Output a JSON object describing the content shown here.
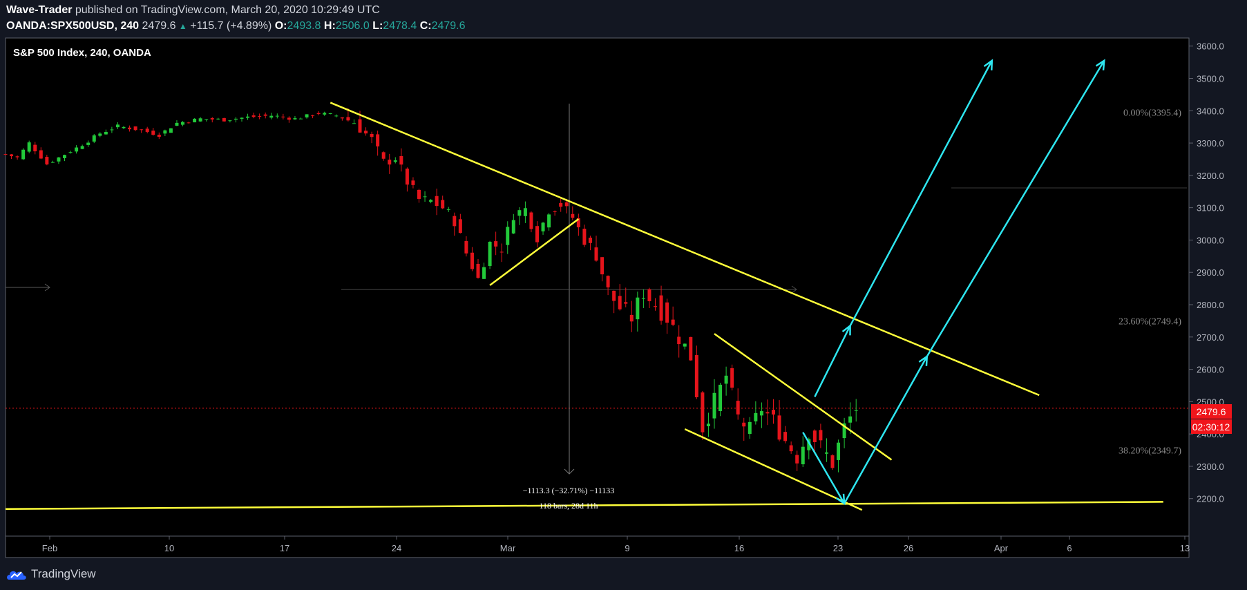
{
  "header": {
    "author": "Wave-Trader",
    "published_text": "published on TradingView.com, March 20, 2020 10:29:49 UTC",
    "symbol": "OANDA:SPX500USD, 240",
    "last": "2479.6",
    "change": "+115.7 (+4.89%)",
    "o_label": "O:",
    "o_value": "2493.8",
    "h_label": "H:",
    "h_value": "2506.0",
    "l_label": "L:",
    "l_value": "2478.4",
    "c_label": "C:",
    "c_value": "2479.6"
  },
  "footer": {
    "brand": "TradingView"
  },
  "colors": {
    "background": "#000000",
    "page_background": "#131722",
    "up_candle": "#22c93a",
    "down_candle": "#e5141b",
    "trendline": "#ffff3a",
    "projection": "#2ee6f0",
    "price_tag": "#f0151b",
    "fib_text": "#8a8a8a"
  },
  "chart_data": {
    "type": "candlestick",
    "title": "S&P 500 Index, 240, OANDA",
    "x_ticks": [
      "Feb",
      "10",
      "17",
      "24",
      "Mar",
      "9",
      "16",
      "23",
      "26",
      "Apr",
      "6",
      "13"
    ],
    "y_ticks": [
      "3600.0",
      "3500.0",
      "3400.0",
      "3300.0",
      "3200.0",
      "3100.0",
      "3000.0",
      "2900.0",
      "2800.0",
      "2700.0",
      "2600.0",
      "2500.0",
      "2400.0",
      "2300.0",
      "2200.0"
    ],
    "ylim": [
      2084,
      3625
    ],
    "last_price_label": "2479.6",
    "last_price": 2479.6,
    "countdown": "02:30:12",
    "fib_levels": [
      {
        "label": "0.00%(3395.4)",
        "price": 3395.4
      },
      {
        "label": "23.60%(2749.4)",
        "price": 2749.4
      },
      {
        "label": "38.20%(2349.7)",
        "price": 2349.7
      }
    ],
    "measure": {
      "line1": "−1113.3 (−32.71%) −11133",
      "line2": "118 bars, 28d 11h"
    },
    "price_path": [
      {
        "t": 0,
        "p": 3265
      },
      {
        "t": 2,
        "p": 3255
      },
      {
        "t": 4,
        "p": 3300
      },
      {
        "t": 7,
        "p": 3235
      },
      {
        "t": 10,
        "p": 3265
      },
      {
        "t": 13,
        "p": 3295
      },
      {
        "t": 16,
        "p": 3330
      },
      {
        "t": 19,
        "p": 3352
      },
      {
        "t": 23,
        "p": 3340
      },
      {
        "t": 26,
        "p": 3325
      },
      {
        "t": 29,
        "p": 3362
      },
      {
        "t": 33,
        "p": 3375
      },
      {
        "t": 37,
        "p": 3372
      },
      {
        "t": 41,
        "p": 3380
      },
      {
        "t": 45,
        "p": 3385
      },
      {
        "t": 49,
        "p": 3375
      },
      {
        "t": 53,
        "p": 3392
      },
      {
        "t": 56,
        "p": 3385
      },
      {
        "t": 59,
        "p": 3365
      },
      {
        "t": 62,
        "p": 3310
      },
      {
        "t": 64,
        "p": 3240
      },
      {
        "t": 66,
        "p": 3255
      },
      {
        "t": 68,
        "p": 3180
      },
      {
        "t": 70,
        "p": 3125
      },
      {
        "t": 72,
        "p": 3120
      },
      {
        "t": 74,
        "p": 3100
      },
      {
        "t": 76,
        "p": 3060
      },
      {
        "t": 78,
        "p": 2960
      },
      {
        "t": 80,
        "p": 2880
      },
      {
        "t": 82,
        "p": 2990
      },
      {
        "t": 84,
        "p": 2975
      },
      {
        "t": 86,
        "p": 3080
      },
      {
        "t": 88,
        "p": 3095
      },
      {
        "t": 90,
        "p": 3010
      },
      {
        "t": 92,
        "p": 3095
      },
      {
        "t": 94,
        "p": 3110
      },
      {
        "t": 96,
        "p": 3070
      },
      {
        "t": 98,
        "p": 3000
      },
      {
        "t": 100,
        "p": 2960
      },
      {
        "t": 102,
        "p": 2840
      },
      {
        "t": 104,
        "p": 2790
      },
      {
        "t": 106,
        "p": 2760
      },
      {
        "t": 108,
        "p": 2840
      },
      {
        "t": 110,
        "p": 2800
      },
      {
        "t": 112,
        "p": 2760
      },
      {
        "t": 114,
        "p": 2700
      },
      {
        "t": 116,
        "p": 2640
      },
      {
        "t": 118,
        "p": 2420
      },
      {
        "t": 120,
        "p": 2500
      },
      {
        "t": 122,
        "p": 2580
      },
      {
        "t": 124,
        "p": 2450
      },
      {
        "t": 126,
        "p": 2410
      },
      {
        "t": 128,
        "p": 2480
      },
      {
        "t": 130,
        "p": 2440
      },
      {
        "t": 132,
        "p": 2380
      },
      {
        "t": 134,
        "p": 2330
      },
      {
        "t": 136,
        "p": 2410
      },
      {
        "t": 138,
        "p": 2360
      },
      {
        "t": 140,
        "p": 2310
      },
      {
        "t": 142,
        "p": 2420
      },
      {
        "t": 144,
        "p": 2479.6
      }
    ],
    "trendlines": [
      {
        "from": {
          "t": 55,
          "p": 3425
        },
        "to": {
          "t": 175,
          "p": 2520
        }
      },
      {
        "from": {
          "t": 82,
          "p": 2860
        },
        "to": {
          "t": 97,
          "p": 3065
        }
      },
      {
        "from": {
          "t": 120,
          "p": 2710
        },
        "to": {
          "t": 150,
          "p": 2320
        }
      },
      {
        "from": {
          "t": 115,
          "p": 2415
        },
        "to": {
          "t": 145,
          "p": 2165
        }
      },
      {
        "from": {
          "t": 0,
          "p": 2168
        },
        "to": {
          "t": 196,
          "p": 2190
        }
      }
    ],
    "projections": [
      {
        "from": {
          "t": 135,
          "p": 2405
        },
        "to": {
          "t": 142,
          "p": 2185
        }
      },
      {
        "from": {
          "t": 142,
          "p": 2185
        },
        "to": {
          "t": 156,
          "p": 2640
        }
      },
      {
        "from": {
          "t": 156,
          "p": 2640
        },
        "to": {
          "t": 186,
          "p": 3555
        }
      },
      {
        "from": {
          "t": 137,
          "p": 2515
        },
        "to": {
          "t": 143,
          "p": 2735
        }
      },
      {
        "from": {
          "t": 143,
          "p": 2735
        },
        "to": {
          "t": 167,
          "p": 3555
        }
      }
    ]
  }
}
